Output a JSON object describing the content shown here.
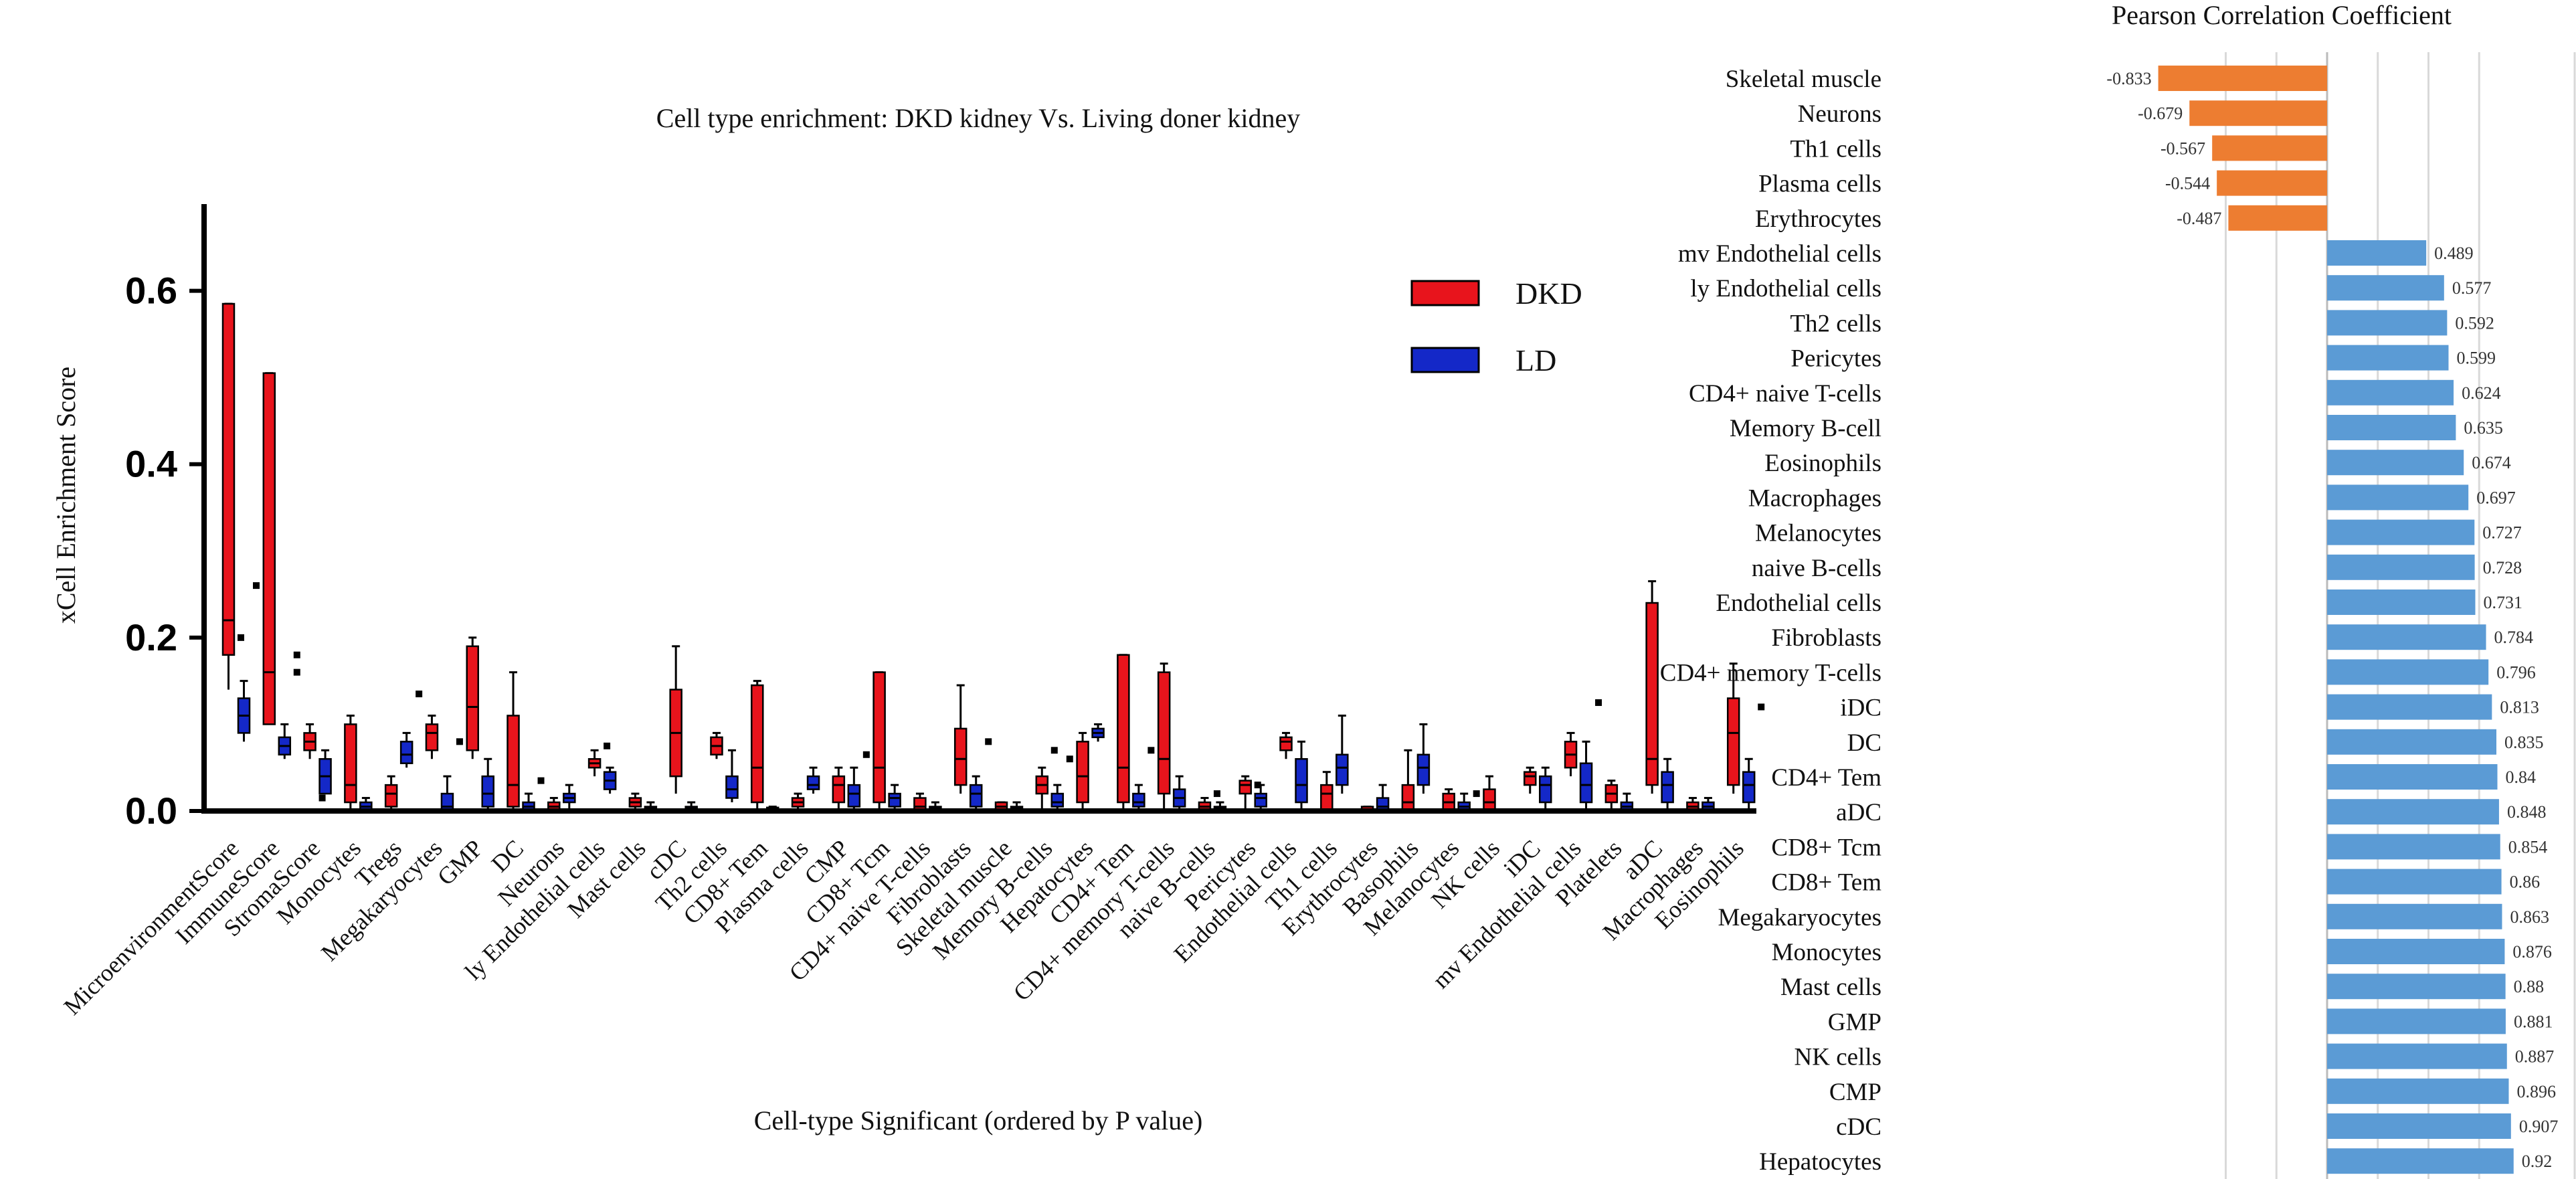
{
  "chart_data": [
    {
      "type": "box",
      "title": "Cell type enrichment: DKD kidney Vs. Living doner kidney",
      "xlabel": "Cell-type Significant (ordered by P value)",
      "ylabel": "xCell Enrichment Score",
      "ylim": [
        0,
        0.7
      ],
      "yticks": [
        "0.0",
        "0.2",
        "0.4",
        "0.6"
      ],
      "legend": [
        {
          "name": "DKD",
          "color": "#e8141c"
        },
        {
          "name": "LD",
          "color": "#1428c8"
        }
      ],
      "legend_position": "top-right",
      "categories": [
        "MicroenvironmentScore",
        "ImmuneScore",
        "StromaScore",
        "Monocytes",
        "Tregs",
        "Megakaryocytes",
        "GMP",
        "DC",
        "Neurons",
        "ly Endothelial cells",
        "Mast cells",
        "cDC",
        "Th2 cells",
        "CD8+ Tem",
        "Plasma cells",
        "CMP",
        "CD8+ Tcm",
        "CD4+ naive T-cells",
        "Fibroblasts",
        "Skeletal muscle",
        "Memory B-cells",
        "Hepatocytes",
        "CD4+ Tem",
        "CD4+ memory T-cells",
        "naive B-cells",
        "Pericytes",
        "Endothelial cells",
        "Th1 cells",
        "Erythrocytes",
        "Basophils",
        "Melanocytes",
        "NK cells",
        "iDC",
        "mv Endothelial cells",
        "Platelets",
        "aDC",
        "Macrophages",
        "Eosinophils"
      ],
      "series": [
        {
          "name": "DKD",
          "boxes": [
            [
              0.14,
              0.18,
              0.22,
              0.585,
              0.585
            ],
            [
              0.14,
              0.1,
              0.16,
              0.505,
              0.505
            ],
            [
              0.06,
              0.07,
              0.08,
              0.09,
              0.1
            ],
            [
              0.0,
              0.01,
              0.03,
              0.1,
              0.11
            ],
            [
              0.0,
              0.005,
              0.02,
              0.03,
              0.04
            ],
            [
              0.06,
              0.07,
              0.09,
              0.1,
              0.11
            ],
            [
              0.06,
              0.07,
              0.12,
              0.19,
              0.2
            ],
            [
              0.0,
              0.005,
              0.03,
              0.11,
              0.16
            ],
            [
              0.0,
              0.0,
              0.005,
              0.01,
              0.015
            ],
            [
              0.04,
              0.05,
              0.055,
              0.06,
              0.07
            ],
            [
              0.0,
              0.005,
              0.01,
              0.015,
              0.02
            ],
            [
              0.02,
              0.04,
              0.09,
              0.14,
              0.19
            ],
            [
              0.06,
              0.065,
              0.075,
              0.085,
              0.09
            ],
            [
              0.0,
              0.01,
              0.05,
              0.145,
              0.15
            ],
            [
              0.0,
              0.005,
              0.01,
              0.015,
              0.02
            ],
            [
              0.0,
              0.01,
              0.03,
              0.04,
              0.05
            ],
            [
              0.0,
              0.01,
              0.05,
              0.16,
              0.16
            ],
            [
              0.0,
              0.0,
              0.005,
              0.015,
              0.02
            ],
            [
              0.02,
              0.03,
              0.06,
              0.095,
              0.145
            ],
            [
              0.0,
              0.0,
              0.005,
              0.01,
              0.01
            ],
            [
              0.0,
              0.02,
              0.03,
              0.04,
              0.05
            ],
            [
              0.0,
              0.01,
              0.04,
              0.08,
              0.09
            ],
            [
              0.0,
              0.01,
              0.05,
              0.18,
              0.18
            ],
            [
              0.0,
              0.02,
              0.06,
              0.16,
              0.17
            ],
            [
              0.0,
              0.0,
              0.005,
              0.01,
              0.015
            ],
            [
              0.0,
              0.02,
              0.03,
              0.035,
              0.04
            ],
            [
              0.06,
              0.07,
              0.08,
              0.085,
              0.09
            ],
            [
              0.0,
              0.0,
              0.02,
              0.03,
              0.045
            ],
            [
              0.0,
              0.0,
              0.002,
              0.005,
              0.005
            ],
            [
              0.0,
              0.0,
              0.01,
              0.03,
              0.07
            ],
            [
              0.0,
              0.0,
              0.01,
              0.02,
              0.025
            ],
            [
              0.0,
              0.0,
              0.01,
              0.025,
              0.04
            ],
            [
              0.02,
              0.03,
              0.04,
              0.045,
              0.05
            ],
            [
              0.04,
              0.05,
              0.065,
              0.08,
              0.09
            ],
            [
              0.0,
              0.01,
              0.02,
              0.03,
              0.035
            ],
            [
              0.02,
              0.03,
              0.06,
              0.24,
              0.265
            ],
            [
              0.0,
              0.0,
              0.005,
              0.01,
              0.015
            ],
            [
              0.02,
              0.03,
              0.09,
              0.13,
              0.17
            ]
          ]
        },
        {
          "name": "LD",
          "boxes": [
            [
              0.08,
              0.09,
              0.11,
              0.13,
              0.15
            ],
            [
              0.06,
              0.065,
              0.075,
              0.085,
              0.1
            ],
            [
              0.02,
              0.02,
              0.04,
              0.06,
              0.07
            ],
            [
              0.0,
              0.0,
              0.005,
              0.01,
              0.015
            ],
            [
              0.05,
              0.055,
              0.065,
              0.08,
              0.09
            ],
            [
              0.0,
              0.0,
              0.005,
              0.02,
              0.04
            ],
            [
              0.0,
              0.005,
              0.02,
              0.04,
              0.06
            ],
            [
              0.0,
              0.0,
              0.005,
              0.01,
              0.02
            ],
            [
              0.0,
              0.01,
              0.015,
              0.02,
              0.03
            ],
            [
              0.02,
              0.025,
              0.035,
              0.045,
              0.05
            ],
            [
              0.0,
              0.0,
              0.003,
              0.005,
              0.01
            ],
            [
              0.0,
              0.0,
              0.003,
              0.005,
              0.01
            ],
            [
              0.01,
              0.015,
              0.025,
              0.04,
              0.07
            ],
            [
              0.0,
              0.0,
              0.002,
              0.004,
              0.005
            ],
            [
              0.02,
              0.025,
              0.03,
              0.04,
              0.05
            ],
            [
              0.0,
              0.005,
              0.02,
              0.03,
              0.05
            ],
            [
              0.0,
              0.005,
              0.015,
              0.02,
              0.03
            ],
            [
              0.0,
              0.0,
              0.003,
              0.005,
              0.01
            ],
            [
              0.0,
              0.005,
              0.02,
              0.03,
              0.04
            ],
            [
              0.0,
              0.0,
              0.003,
              0.005,
              0.01
            ],
            [
              0.0,
              0.005,
              0.01,
              0.02,
              0.03
            ],
            [
              0.08,
              0.085,
              0.09,
              0.095,
              0.1
            ],
            [
              0.0,
              0.005,
              0.01,
              0.02,
              0.03
            ],
            [
              0.0,
              0.005,
              0.015,
              0.025,
              0.04
            ],
            [
              0.0,
              0.0,
              0.003,
              0.005,
              0.01
            ],
            [
              0.0,
              0.005,
              0.015,
              0.02,
              0.03
            ],
            [
              0.0,
              0.01,
              0.03,
              0.06,
              0.08
            ],
            [
              0.02,
              0.03,
              0.05,
              0.065,
              0.11
            ],
            [
              0.0,
              0.0,
              0.005,
              0.015,
              0.03
            ],
            [
              0.02,
              0.03,
              0.05,
              0.065,
              0.1
            ],
            [
              0.0,
              0.0,
              0.005,
              0.01,
              0.02
            ],
            [
              0.0,
              0.0,
              0.0,
              0.0,
              0.0
            ],
            [
              0.0,
              0.01,
              0.03,
              0.04,
              0.05
            ],
            [
              0.0,
              0.01,
              0.03,
              0.055,
              0.08
            ],
            [
              0.0,
              0.0,
              0.005,
              0.01,
              0.02
            ],
            [
              0.0,
              0.01,
              0.03,
              0.045,
              0.06
            ],
            [
              0.0,
              0.0,
              0.005,
              0.01,
              0.015
            ],
            [
              0.0,
              0.01,
              0.03,
              0.045,
              0.06
            ]
          ]
        }
      ],
      "outliers": [
        {
          "series": "LD",
          "category": "MicroenvironmentScore",
          "value": 0.26
        },
        {
          "series": "DKD",
          "category": "MicroenvironmentScore",
          "value": 0.2
        },
        {
          "series": "LD",
          "category": "ImmuneScore",
          "value": 0.18
        },
        {
          "series": "LD",
          "category": "ImmuneScore",
          "value": 0.16
        },
        {
          "series": "DKD",
          "category": "StromaScore",
          "value": 0.015
        },
        {
          "series": "LD",
          "category": "Tregs",
          "value": 0.135
        },
        {
          "series": "LD",
          "category": "Megakaryocytes",
          "value": 0.08
        },
        {
          "series": "LD",
          "category": "DC",
          "value": 0.035
        },
        {
          "series": "DKD",
          "category": "ly Endothelial cells",
          "value": 0.075
        },
        {
          "series": "LD",
          "category": "CMP",
          "value": 0.065
        },
        {
          "series": "LD",
          "category": "Fibroblasts",
          "value": 0.08
        },
        {
          "series": "DKD",
          "category": "Memory B-cells",
          "value": 0.07
        },
        {
          "series": "LD",
          "category": "Memory B-cells",
          "value": 0.06
        },
        {
          "series": "LD",
          "category": "CD4+ Tem",
          "value": 0.07
        },
        {
          "series": "DKD",
          "category": "naive B-cells",
          "value": 0.02
        },
        {
          "series": "DKD",
          "category": "Pericytes",
          "value": 0.03
        },
        {
          "series": "LD",
          "category": "Melanocytes",
          "value": 0.02
        },
        {
          "series": "LD",
          "category": "mv Endothelial cells",
          "value": 0.125
        },
        {
          "series": "LD",
          "category": "Eosinophils",
          "value": 0.12
        }
      ]
    },
    {
      "type": "bar",
      "orientation": "horizontal",
      "title": "Pearson Correlation Coefficient",
      "xlim": [
        -1,
        1
      ],
      "categories": [
        "Skeletal muscle",
        "Neurons",
        "Th1 cells",
        "Plasma cells",
        "Erythrocytes",
        "mv Endothelial cells",
        "ly Endothelial cells",
        "Th2 cells",
        "Pericytes",
        "CD4+ naive T-cells",
        "Memory B-cell",
        "Eosinophils",
        "Macrophages",
        "Melanocytes",
        "naive B-cells",
        "Endothelial cells",
        "Fibroblasts",
        "CD4+ memory T-cells",
        "iDC",
        "DC",
        "CD4+ Tem",
        "aDC",
        "CD8+ Tcm",
        "CD8+ Tem",
        "Megakaryocytes",
        "Monocytes",
        "Mast cells",
        "GMP",
        "NK cells",
        "CMP",
        "cDC",
        "Hepatocytes"
      ],
      "values": [
        -0.833,
        -0.679,
        -0.567,
        -0.544,
        -0.487,
        0.489,
        0.577,
        0.592,
        0.599,
        0.624,
        0.635,
        0.674,
        0.697,
        0.727,
        0.728,
        0.731,
        0.784,
        0.796,
        0.813,
        0.835,
        0.84,
        0.848,
        0.854,
        0.86,
        0.863,
        0.876,
        0.88,
        0.881,
        0.887,
        0.896,
        0.907,
        0.92
      ],
      "value_labels": [
        "-0.833",
        "-0.679",
        "-0.567",
        "-0.544",
        "-0.487",
        "0.489",
        "0.577",
        "0.592",
        "0.599",
        "0.624",
        "0.635",
        "0.674",
        "0.697",
        "0.727",
        "0.728",
        "0.731",
        "0.784",
        "0.796",
        "0.813",
        "0.835",
        "0.84",
        "0.848",
        "0.854",
        "0.86",
        "0.863",
        "0.876",
        "0.88",
        "0.881",
        "0.887",
        "0.896",
        "0.907",
        "0.92"
      ],
      "colors": {
        "negative": "#ed7d31",
        "positive": "#5b9bd5"
      }
    }
  ]
}
